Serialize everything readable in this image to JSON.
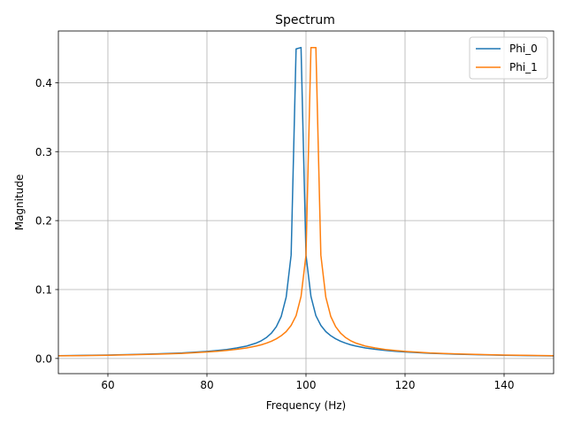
{
  "chart_data": {
    "type": "line",
    "title": "Spectrum",
    "xlabel": "Frequency (Hz)",
    "ylabel": "Magnitude",
    "xlim": [
      50,
      150
    ],
    "ylim": [
      -0.022,
      0.475
    ],
    "xticks": [
      60,
      80,
      100,
      120,
      140
    ],
    "yticks": [
      0.0,
      0.1,
      0.2,
      0.3,
      0.4
    ],
    "grid": true,
    "legend_position": "top-right",
    "series": [
      {
        "name": "Phi_0",
        "color": "#1f77b4",
        "x": [
          50,
          55,
          60,
          65,
          70,
          75,
          80,
          82,
          84,
          86,
          88,
          90,
          91,
          92,
          93,
          94,
          95,
          96,
          97,
          98,
          99,
          100,
          101,
          102,
          103,
          104,
          105,
          106,
          107,
          108,
          109,
          110,
          112,
          114,
          116,
          118,
          120,
          125,
          130,
          135,
          140,
          145,
          150
        ],
        "values": [
          0.004,
          0.0045,
          0.005,
          0.0057,
          0.0067,
          0.008,
          0.0103,
          0.0115,
          0.013,
          0.0152,
          0.018,
          0.0225,
          0.0258,
          0.0303,
          0.0366,
          0.046,
          0.061,
          0.089,
          0.15,
          0.449,
          0.451,
          0.15,
          0.09,
          0.062,
          0.048,
          0.039,
          0.033,
          0.0285,
          0.025,
          0.0222,
          0.0199,
          0.0181,
          0.0153,
          0.0133,
          0.0117,
          0.0104,
          0.0094,
          0.0076,
          0.0063,
          0.0054,
          0.0047,
          0.0041,
          0.0037
        ]
      },
      {
        "name": "Phi_1",
        "color": "#ff7f0e",
        "x": [
          50,
          55,
          60,
          65,
          70,
          75,
          80,
          82,
          84,
          86,
          88,
          90,
          91,
          92,
          93,
          94,
          95,
          96,
          97,
          98,
          99,
          100,
          101,
          102,
          103,
          104,
          105,
          106,
          107,
          108,
          109,
          110,
          112,
          114,
          116,
          118,
          120,
          125,
          130,
          135,
          140,
          145,
          150
        ],
        "values": [
          0.0038,
          0.0042,
          0.0047,
          0.0054,
          0.0062,
          0.0074,
          0.0094,
          0.0104,
          0.0117,
          0.0133,
          0.0153,
          0.0181,
          0.0199,
          0.0222,
          0.025,
          0.0285,
          0.033,
          0.039,
          0.048,
          0.062,
          0.09,
          0.15,
          0.451,
          0.451,
          0.15,
          0.089,
          0.061,
          0.046,
          0.0366,
          0.0303,
          0.0258,
          0.0225,
          0.018,
          0.0152,
          0.013,
          0.0115,
          0.0103,
          0.008,
          0.0067,
          0.0057,
          0.005,
          0.0045,
          0.004
        ]
      }
    ]
  }
}
